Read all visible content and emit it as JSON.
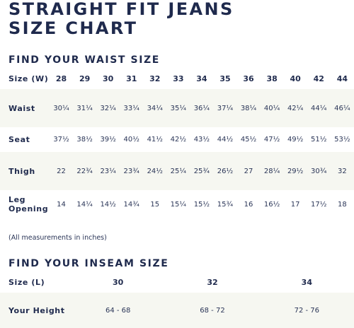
{
  "title_line1": "STRAIGHT FIT JEANS",
  "title_line2": "SIZE CHART",
  "waist": {
    "section_title": "FIND YOUR WAIST SIZE",
    "header_label": "Size (W)",
    "sizes": [
      "28",
      "29",
      "30",
      "31",
      "32",
      "33",
      "34",
      "35",
      "36",
      "38",
      "40",
      "42",
      "44"
    ],
    "rows": [
      {
        "label_line1": "Waist",
        "label_line2": "",
        "values": [
          "30¼",
          "31¼",
          "32¼",
          "33¼",
          "34¼",
          "35¼",
          "36¼",
          "37¼",
          "38¼",
          "40¼",
          "42¼",
          "44¼",
          "46¼"
        ]
      },
      {
        "label_line1": "Seat",
        "label_line2": "",
        "values": [
          "37½",
          "38½",
          "39½",
          "40½",
          "41½",
          "42½",
          "43½",
          "44½",
          "45½",
          "47½",
          "49½",
          "51½",
          "53½"
        ]
      },
      {
        "label_line1": "Thigh",
        "label_line2": "",
        "values": [
          "22",
          "22¾",
          "23¼",
          "23¾",
          "24½",
          "25¼",
          "25¾",
          "26½",
          "27",
          "28¼",
          "29½",
          "30¾",
          "32"
        ]
      },
      {
        "label_line1": "Leg",
        "label_line2": "Opening",
        "values": [
          "14",
          "14¼",
          "14½",
          "14¾",
          "15",
          "15¼",
          "15½",
          "15¾",
          "16",
          "16½",
          "17",
          "17½",
          "18"
        ]
      }
    ]
  },
  "note": "(All measurements in inches)",
  "inseam": {
    "section_title": "FIND YOUR INSEAM SIZE",
    "header_label": "Size (L)",
    "sizes": [
      "30",
      "32",
      "34"
    ],
    "row_label": "Your Height",
    "heights": [
      "64 - 68",
      "68 - 72",
      "72 - 76"
    ]
  }
}
